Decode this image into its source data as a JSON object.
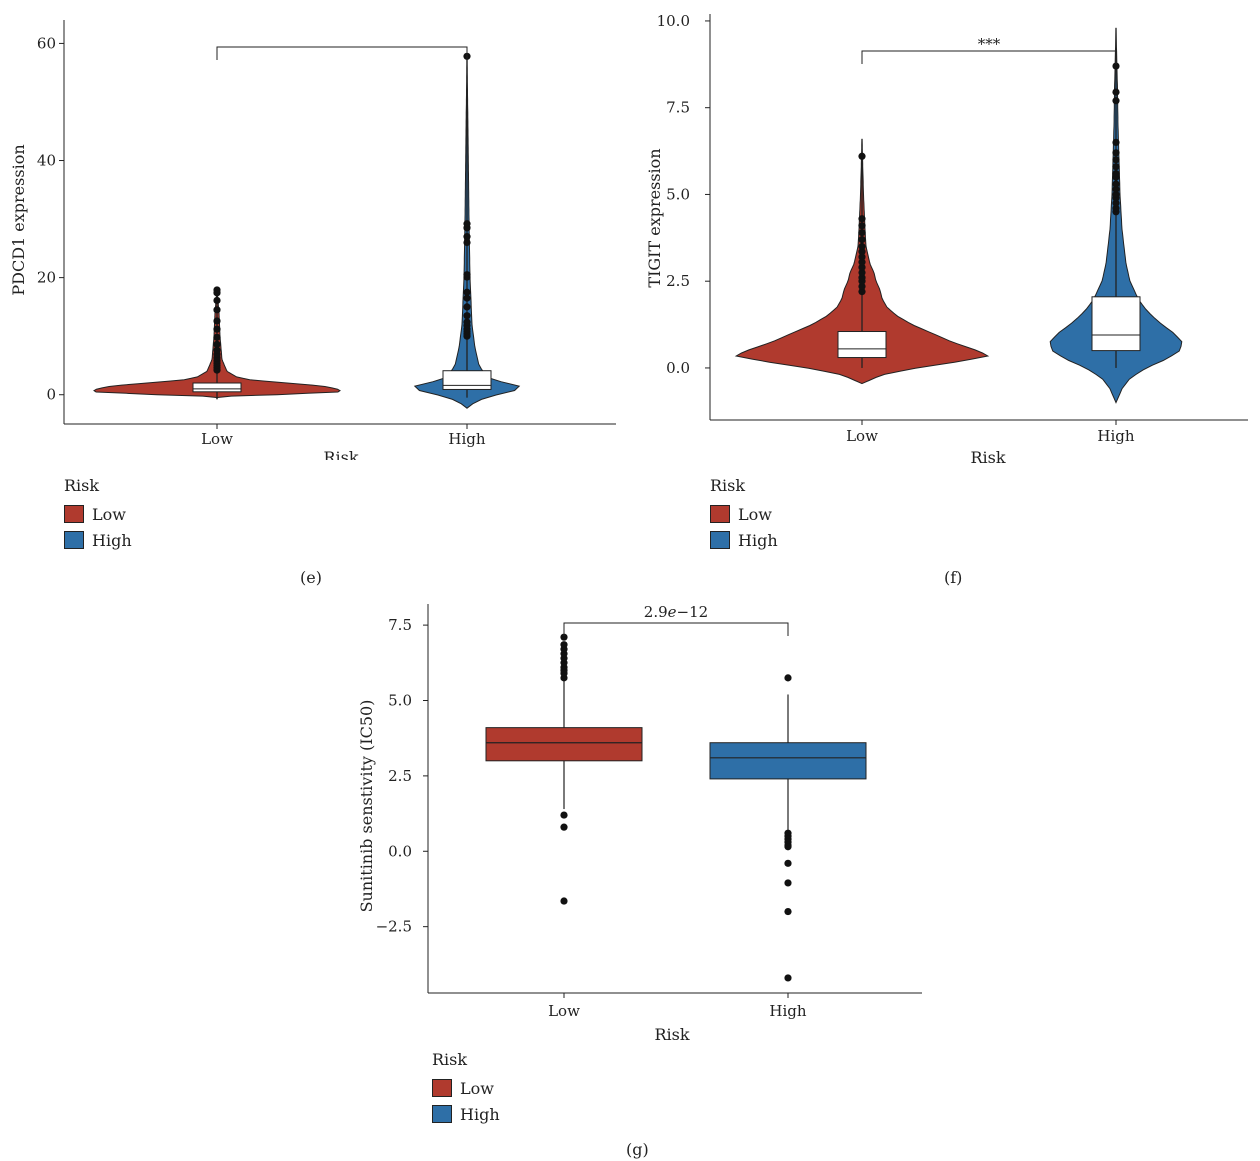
{
  "colors": {
    "low": "#b03a2e",
    "high": "#2e6fa7"
  },
  "chart_data": [
    {
      "id": "e",
      "type": "violin",
      "caption": "(e)",
      "xlabel": "Risk",
      "ylabel": "PDCD1 expression",
      "categories": [
        "Low",
        "High"
      ],
      "ylim": [
        -5,
        64
      ],
      "yticks": [
        0,
        20,
        40,
        60
      ],
      "yticklabels": [
        "0",
        "20",
        "40",
        "60"
      ],
      "violin_range": [
        [
          -0.7,
          18
        ],
        [
          -2.3,
          58
        ]
      ],
      "violin_halfwidth": [
        [
          [
            -0.7,
            0
          ],
          [
            -0.3,
            1
          ],
          [
            0,
            60
          ],
          [
            0.5,
            125
          ],
          [
            1,
            120
          ],
          [
            1.5,
            105
          ],
          [
            2,
            70
          ],
          [
            2.5,
            35
          ],
          [
            3,
            20
          ],
          [
            4,
            10
          ],
          [
            6,
            5
          ],
          [
            10,
            3
          ],
          [
            14,
            2
          ],
          [
            18,
            0
          ]
        ],
        [
          [
            -2.3,
            0
          ],
          [
            -1.5,
            6
          ],
          [
            -0.5,
            18
          ],
          [
            0.5,
            42
          ],
          [
            1,
            55
          ],
          [
            1.5,
            52
          ],
          [
            2,
            38
          ],
          [
            3,
            20
          ],
          [
            5,
            12
          ],
          [
            8,
            8
          ],
          [
            12,
            5
          ],
          [
            20,
            3
          ],
          [
            30,
            2
          ],
          [
            45,
            1
          ],
          [
            58,
            0
          ]
        ]
      ],
      "box": [
        {
          "q1": 0.5,
          "median": 1.0,
          "q3": 2.0
        },
        {
          "q1": 0.9,
          "median": 1.6,
          "q3": 4.1
        }
      ],
      "whisker_low": [
        -0.7,
        -0.5
      ],
      "outliers": [
        [
          4.2,
          4.6,
          5.0,
          5.4,
          5.8,
          6.3,
          6.9,
          7.6,
          8.6,
          9.8,
          11.2,
          12.6,
          14.5,
          16.1,
          17.4,
          17.9
        ],
        [
          10.0,
          10.4,
          10.8,
          11.2,
          11.8,
          12.4,
          13.5,
          15.0,
          16.5,
          17.5,
          20.1,
          20.5,
          26.0,
          27.0,
          28.5,
          29.2,
          57.8
        ]
      ],
      "annotation": "",
      "legend": {
        "title": "Risk",
        "entries": [
          "Low",
          "High"
        ]
      }
    },
    {
      "id": "f",
      "type": "violin",
      "caption": "(f)",
      "xlabel": "Risk",
      "ylabel": "TIGIT expression",
      "categories": [
        "Low",
        "High"
      ],
      "ylim": [
        -1.5,
        10.2
      ],
      "yticks": [
        0,
        2.5,
        5,
        7.5,
        10
      ],
      "yticklabels": [
        "0.0",
        "2.5",
        "5.0",
        "7.5",
        "10.0"
      ],
      "violin_range": [
        [
          -0.45,
          6.6
        ],
        [
          -1.0,
          9.8
        ]
      ],
      "violin_halfwidth": [
        [
          [
            -0.45,
            0
          ],
          [
            -0.2,
            20
          ],
          [
            0,
            55
          ],
          [
            0.2,
            100
          ],
          [
            0.35,
            127
          ],
          [
            0.5,
            115
          ],
          [
            0.75,
            90
          ],
          [
            1,
            70
          ],
          [
            1.25,
            50
          ],
          [
            1.5,
            35
          ],
          [
            1.75,
            25
          ],
          [
            2,
            20
          ],
          [
            2.25,
            18
          ],
          [
            2.5,
            14
          ],
          [
            2.75,
            12
          ],
          [
            3,
            8
          ],
          [
            3.5,
            4
          ],
          [
            4,
            3
          ],
          [
            5,
            1.5
          ],
          [
            6.6,
            0
          ]
        ],
        [
          [
            -1.0,
            0
          ],
          [
            -0.6,
            6
          ],
          [
            -0.3,
            14
          ],
          [
            0,
            30
          ],
          [
            0.25,
            50
          ],
          [
            0.5,
            64
          ],
          [
            0.75,
            66
          ],
          [
            1,
            58
          ],
          [
            1.25,
            46
          ],
          [
            1.5,
            36
          ],
          [
            1.75,
            28
          ],
          [
            2,
            22
          ],
          [
            2.5,
            14
          ],
          [
            3,
            10
          ],
          [
            3.5,
            8
          ],
          [
            4,
            6
          ],
          [
            5,
            4
          ],
          [
            6,
            3
          ],
          [
            7,
            2
          ],
          [
            8,
            1.5
          ],
          [
            9.8,
            0
          ]
        ]
      ],
      "box": [
        {
          "q1": 0.3,
          "median": 0.55,
          "q3": 1.05
        },
        {
          "q1": 0.5,
          "median": 0.95,
          "q3": 2.05
        }
      ],
      "whisker_low": [
        0.0,
        0.0
      ],
      "outliers": [
        [
          2.2,
          2.35,
          2.5,
          2.6,
          2.75,
          2.9,
          3.05,
          3.2,
          3.35,
          3.5,
          3.7,
          3.9,
          4.1,
          4.3,
          6.1
        ],
        [
          4.5,
          4.6,
          4.75,
          4.9,
          5.0,
          5.15,
          5.3,
          5.5,
          5.6,
          5.8,
          6.0,
          6.2,
          6.5,
          7.7,
          7.95,
          8.7
        ]
      ],
      "annotation": "***",
      "legend": {
        "title": "Risk",
        "entries": [
          "Low",
          "High"
        ]
      }
    },
    {
      "id": "g",
      "type": "box",
      "caption": "(g)",
      "xlabel": "Risk",
      "ylabel": "Sunitinib senstivity (IC50)",
      "categories": [
        "Low",
        "High"
      ],
      "ylim": [
        -4.7,
        8.2
      ],
      "yticks": [
        -2.5,
        0,
        2.5,
        5,
        7.5
      ],
      "yticklabels": [
        "−2.5",
        "0.0",
        "2.5",
        "5.0",
        "7.5"
      ],
      "box": [
        {
          "q1": 3.0,
          "median": 3.6,
          "q3": 4.1,
          "whisker_low": 1.4,
          "whisker_high": 5.7
        },
        {
          "q1": 2.4,
          "median": 3.1,
          "q3": 3.6,
          "whisker_low": 0.7,
          "whisker_high": 5.2
        }
      ],
      "outliers": [
        [
          5.75,
          5.9,
          6.0,
          6.1,
          6.25,
          6.4,
          6.55,
          6.7,
          6.85,
          7.1,
          1.2,
          0.8,
          -1.65
        ],
        [
          5.75,
          0.6,
          0.5,
          0.4,
          0.3,
          0.2,
          0.15,
          -0.4,
          -1.05,
          -2.0,
          -4.2
        ]
      ],
      "annotation_parts": [
        "2.9",
        "e",
        "−12"
      ],
      "legend": {
        "title": "Risk",
        "entries": [
          "Low",
          "High"
        ]
      }
    }
  ]
}
